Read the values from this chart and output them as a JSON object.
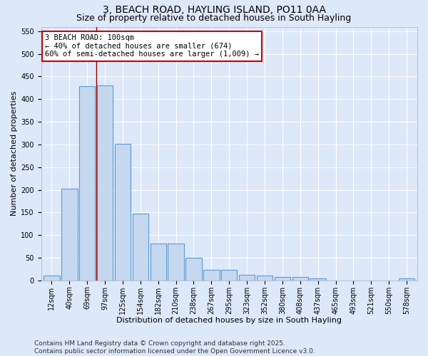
{
  "title1": "3, BEACH ROAD, HAYLING ISLAND, PO11 0AA",
  "title2": "Size of property relative to detached houses in South Hayling",
  "xlabel": "Distribution of detached houses by size in South Hayling",
  "ylabel": "Number of detached properties",
  "categories": [
    "12sqm",
    "40sqm",
    "69sqm",
    "97sqm",
    "125sqm",
    "154sqm",
    "182sqm",
    "210sqm",
    "238sqm",
    "267sqm",
    "295sqm",
    "323sqm",
    "352sqm",
    "380sqm",
    "408sqm",
    "437sqm",
    "465sqm",
    "493sqm",
    "521sqm",
    "550sqm",
    "578sqm"
  ],
  "values": [
    10,
    203,
    428,
    430,
    302,
    147,
    82,
    82,
    50,
    24,
    24,
    12,
    10,
    8,
    7,
    5,
    0,
    0,
    0,
    0,
    5
  ],
  "bar_color": "#c5d8f0",
  "bar_edge_color": "#5b9bd5",
  "bg_color": "#dde8f8",
  "grid_color": "#ffffff",
  "annotation_text": "3 BEACH ROAD: 100sqm\n← 40% of detached houses are smaller (674)\n60% of semi-detached houses are larger (1,009) →",
  "annotation_box_color": "#ffffff",
  "annotation_box_edge": "#cc0000",
  "vline_color": "#8b0000",
  "ylim": [
    0,
    560
  ],
  "yticks": [
    0,
    50,
    100,
    150,
    200,
    250,
    300,
    350,
    400,
    450,
    500,
    550
  ],
  "footnote": "Contains HM Land Registry data © Crown copyright and database right 2025.\nContains public sector information licensed under the Open Government Licence v3.0.",
  "title1_fontsize": 10,
  "title2_fontsize": 9,
  "xlabel_fontsize": 8,
  "ylabel_fontsize": 8,
  "tick_fontsize": 7,
  "annot_fontsize": 7.5,
  "footnote_fontsize": 6.5
}
